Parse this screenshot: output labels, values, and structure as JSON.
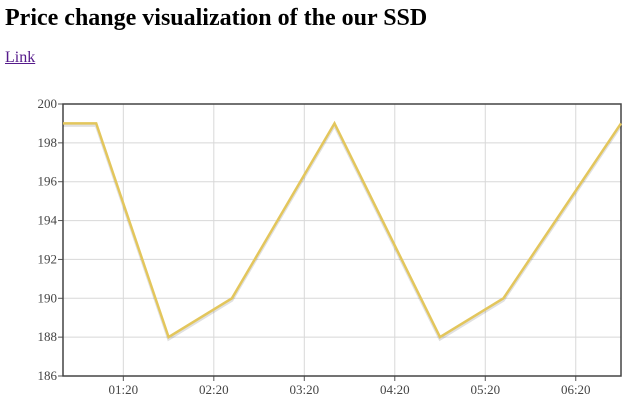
{
  "page": {
    "title": "Price change visualization of the our SSD",
    "link_label": "Link"
  },
  "chart_data": {
    "type": "line",
    "title": "",
    "xlabel": "",
    "ylabel": "",
    "x_unit": "time (HH:MM)",
    "xlim": [
      "00:40",
      "06:50"
    ],
    "ylim": [
      186,
      200
    ],
    "y_ticks": [
      186,
      188,
      190,
      192,
      194,
      196,
      198,
      200
    ],
    "x_ticks": [
      "01:20",
      "02:20",
      "03:20",
      "04:20",
      "05:20",
      "06:20"
    ],
    "grid": true,
    "legend": "none",
    "series": [
      {
        "color": "#e3c65c",
        "points": [
          {
            "x": "00:40",
            "y": 199
          },
          {
            "x": "01:02",
            "y": 199
          },
          {
            "x": "01:50",
            "y": 188
          },
          {
            "x": "02:32",
            "y": 190
          },
          {
            "x": "03:40",
            "y": 199
          },
          {
            "x": "04:50",
            "y": 188
          },
          {
            "x": "05:32",
            "y": 190
          },
          {
            "x": "06:50",
            "y": 199
          }
        ]
      }
    ]
  }
}
